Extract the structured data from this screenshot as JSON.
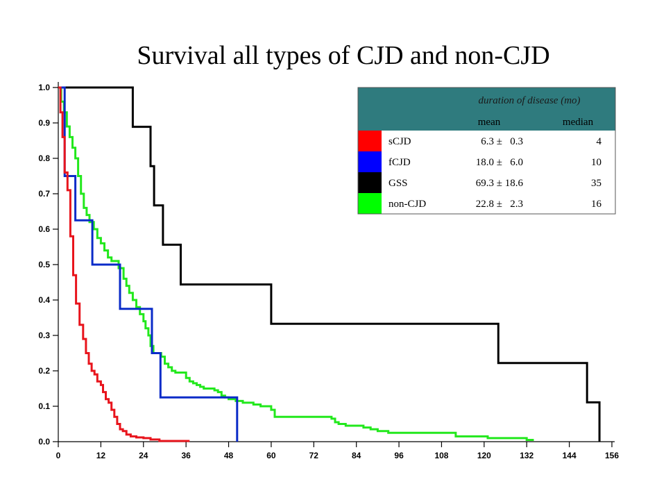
{
  "chart_data": {
    "type": "line",
    "title": "Survival all types of CJD and non-CJD",
    "xlabel": "",
    "ylabel": "",
    "xlim": [
      0,
      156
    ],
    "ylim": [
      0,
      1.0
    ],
    "x_ticks": [
      "0",
      "12",
      "24",
      "36",
      "48",
      "60",
      "72",
      "84",
      "96",
      "108",
      "120",
      "132",
      "144",
      "156"
    ],
    "y_ticks": [
      "0.0",
      "0.1",
      "0.2",
      "0.3",
      "0.4",
      "0.5",
      "0.6",
      "0.7",
      "0.8",
      "0.9",
      "1.0"
    ],
    "grid": false,
    "series": [
      {
        "name": "sCJD",
        "color": "#e8141c",
        "steps": [
          [
            0,
            1.0
          ],
          [
            0.6,
            0.93
          ],
          [
            1.2,
            0.86
          ],
          [
            1.8,
            0.76
          ],
          [
            2.6,
            0.71
          ],
          [
            3.4,
            0.58
          ],
          [
            4.2,
            0.47
          ],
          [
            5.0,
            0.39
          ],
          [
            6.0,
            0.33
          ],
          [
            7.0,
            0.29
          ],
          [
            7.8,
            0.25
          ],
          [
            8.6,
            0.22
          ],
          [
            9.4,
            0.2
          ],
          [
            10.2,
            0.19
          ],
          [
            11.0,
            0.17
          ],
          [
            12.0,
            0.16
          ],
          [
            12.6,
            0.14
          ],
          [
            13.4,
            0.12
          ],
          [
            14.2,
            0.11
          ],
          [
            15.0,
            0.09
          ],
          [
            15.8,
            0.07
          ],
          [
            16.6,
            0.05
          ],
          [
            17.4,
            0.035
          ],
          [
            18.2,
            0.03
          ],
          [
            19.2,
            0.02
          ],
          [
            20.4,
            0.015
          ],
          [
            22.0,
            0.012
          ],
          [
            24.0,
            0.01
          ],
          [
            26.0,
            0.006
          ],
          [
            28.5,
            0.002
          ],
          [
            37.0,
            0.002
          ]
        ]
      },
      {
        "name": "fCJD",
        "color": "#0a2bc8",
        "steps": [
          [
            0,
            1.0
          ],
          [
            1.8,
            0.75
          ],
          [
            4.8,
            0.625
          ],
          [
            9.6,
            0.5
          ],
          [
            17.4,
            0.375
          ],
          [
            26.4,
            0.25
          ],
          [
            28.8,
            0.125
          ],
          [
            50.4,
            0.0
          ]
        ]
      },
      {
        "name": "GSS",
        "color": "#000000",
        "steps": [
          [
            0,
            1.0
          ],
          [
            21,
            0.889
          ],
          [
            26,
            0.778
          ],
          [
            27,
            0.667
          ],
          [
            29.5,
            0.556
          ],
          [
            34.5,
            0.444
          ],
          [
            60,
            0.333
          ],
          [
            124,
            0.222
          ],
          [
            149,
            0.111
          ],
          [
            152.5,
            0.0
          ]
        ]
      },
      {
        "name": "non-CJD",
        "color": "#22e81c",
        "steps": [
          [
            0,
            1.0
          ],
          [
            0.8,
            0.96
          ],
          [
            1.6,
            0.93
          ],
          [
            2.4,
            0.89
          ],
          [
            3.2,
            0.86
          ],
          [
            4.0,
            0.83
          ],
          [
            4.8,
            0.8
          ],
          [
            5.6,
            0.75
          ],
          [
            6.4,
            0.7
          ],
          [
            7.2,
            0.66
          ],
          [
            8.0,
            0.64
          ],
          [
            8.8,
            0.62
          ],
          [
            10.0,
            0.6
          ],
          [
            11.0,
            0.575
          ],
          [
            12.0,
            0.56
          ],
          [
            13.0,
            0.54
          ],
          [
            14.0,
            0.52
          ],
          [
            15.0,
            0.51
          ],
          [
            17.0,
            0.49
          ],
          [
            18.4,
            0.46
          ],
          [
            19.2,
            0.44
          ],
          [
            20.0,
            0.42
          ],
          [
            21.0,
            0.4
          ],
          [
            22.0,
            0.38
          ],
          [
            23.0,
            0.36
          ],
          [
            24.0,
            0.34
          ],
          [
            24.6,
            0.32
          ],
          [
            25.4,
            0.3
          ],
          [
            26.0,
            0.27
          ],
          [
            26.8,
            0.25
          ],
          [
            29.0,
            0.24
          ],
          [
            30.0,
            0.22
          ],
          [
            31.0,
            0.21
          ],
          [
            32.0,
            0.2
          ],
          [
            33.0,
            0.195
          ],
          [
            36.0,
            0.18
          ],
          [
            37.0,
            0.17
          ],
          [
            38.0,
            0.165
          ],
          [
            39.0,
            0.16
          ],
          [
            40.0,
            0.155
          ],
          [
            41.0,
            0.15
          ],
          [
            44.0,
            0.145
          ],
          [
            45.0,
            0.14
          ],
          [
            46.0,
            0.13
          ],
          [
            47.0,
            0.125
          ],
          [
            48.0,
            0.12
          ],
          [
            50.0,
            0.115
          ],
          [
            52.0,
            0.11
          ],
          [
            55.0,
            0.105
          ],
          [
            57.0,
            0.1
          ],
          [
            60.0,
            0.09
          ],
          [
            61.0,
            0.07
          ],
          [
            77.0,
            0.065
          ],
          [
            78.0,
            0.055
          ],
          [
            79.0,
            0.05
          ],
          [
            81.0,
            0.045
          ],
          [
            86.0,
            0.04
          ],
          [
            88.0,
            0.035
          ],
          [
            90.0,
            0.03
          ],
          [
            93.0,
            0.025
          ],
          [
            112.0,
            0.015
          ],
          [
            121.0,
            0.01
          ],
          [
            132.0,
            0.005
          ],
          [
            134.0,
            0.005
          ]
        ]
      }
    ]
  },
  "summary_table": {
    "header": "duration of disease (mo)",
    "col_mean": "mean",
    "col_median": "median",
    "rows": [
      {
        "name": "sCJD",
        "color": "#ff0000",
        "mean": "6.3 ±   0.3",
        "median": "4"
      },
      {
        "name": "fCJD",
        "color": "#0000ff",
        "mean": "18.0 ±   6.0",
        "median": "10"
      },
      {
        "name": "GSS",
        "color": "#000000",
        "mean": "69.3 ± 18.6",
        "median": "35"
      },
      {
        "name": "non-CJD",
        "color": "#00ff00",
        "mean": "22.8 ±   2.3",
        "median": "16"
      }
    ],
    "header_bg": "#2f7b7e"
  }
}
